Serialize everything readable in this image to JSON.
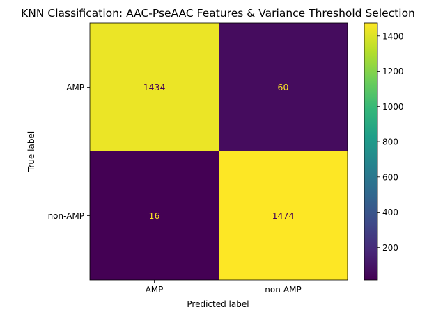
{
  "chart_data": {
    "type": "heatmap",
    "title": "KNN Classification: AAC-PseAAC Features & Variance Threshold Selection",
    "xlabel": "Predicted label",
    "ylabel": "True label",
    "x_categories": [
      "AMP",
      "non-AMP"
    ],
    "y_categories": [
      "AMP",
      "non-AMP"
    ],
    "matrix": [
      [
        1434,
        60
      ],
      [
        16,
        1474
      ]
    ],
    "colormap": "viridis",
    "colorbar": {
      "range": [
        16,
        1474
      ],
      "ticks": [
        200,
        400,
        600,
        800,
        1000,
        1200,
        1400
      ]
    },
    "text_colors": {
      "on_dark": "#fde725",
      "on_light": "#440154"
    }
  }
}
